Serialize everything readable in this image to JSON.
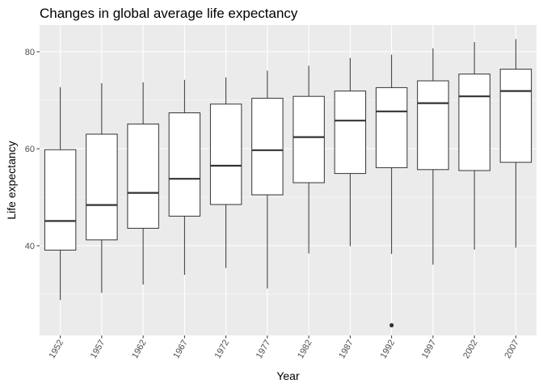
{
  "chart_data": {
    "type": "box",
    "title": "Changes in global average life expectancy",
    "xlabel": "Year",
    "ylabel": "Life expectancy",
    "ylim": [
      21.5,
      85.5
    ],
    "yticks": [
      40,
      60,
      80
    ],
    "grid": true,
    "legend": "none",
    "categories": [
      "1952",
      "1957",
      "1962",
      "1967",
      "1972",
      "1977",
      "1982",
      "1987",
      "1992",
      "1997",
      "2002",
      "2007"
    ],
    "boxes": [
      {
        "year": "1952",
        "min": 28.8,
        "q1": 39.1,
        "median": 45.1,
        "q3": 59.8,
        "max": 72.7,
        "outliers": []
      },
      {
        "year": "1957",
        "min": 30.3,
        "q1": 41.2,
        "median": 48.4,
        "q3": 63.0,
        "max": 73.5,
        "outliers": []
      },
      {
        "year": "1962",
        "min": 32.0,
        "q1": 43.6,
        "median": 50.9,
        "q3": 65.1,
        "max": 73.7,
        "outliers": []
      },
      {
        "year": "1967",
        "min": 34.0,
        "q1": 46.1,
        "median": 53.8,
        "q3": 67.4,
        "max": 74.2,
        "outliers": []
      },
      {
        "year": "1972",
        "min": 35.4,
        "q1": 48.5,
        "median": 56.5,
        "q3": 69.2,
        "max": 74.7,
        "outliers": []
      },
      {
        "year": "1977",
        "min": 31.2,
        "q1": 50.5,
        "median": 59.7,
        "q3": 70.4,
        "max": 76.1,
        "outliers": []
      },
      {
        "year": "1982",
        "min": 38.4,
        "q1": 53.0,
        "median": 62.4,
        "q3": 70.8,
        "max": 77.1,
        "outliers": []
      },
      {
        "year": "1987",
        "min": 39.9,
        "q1": 54.9,
        "median": 65.8,
        "q3": 71.9,
        "max": 78.7,
        "outliers": []
      },
      {
        "year": "1992",
        "min": 38.3,
        "q1": 56.1,
        "median": 67.7,
        "q3": 72.6,
        "max": 79.4,
        "outliers": [
          23.6
        ]
      },
      {
        "year": "1997",
        "min": 36.1,
        "q1": 55.7,
        "median": 69.4,
        "q3": 74.0,
        "max": 80.7,
        "outliers": []
      },
      {
        "year": "2002",
        "min": 39.2,
        "q1": 55.5,
        "median": 70.8,
        "q3": 75.4,
        "max": 82.0,
        "outliers": []
      },
      {
        "year": "2007",
        "min": 39.6,
        "q1": 57.2,
        "median": 71.9,
        "q3": 76.4,
        "max": 82.6,
        "outliers": []
      }
    ],
    "colors": {
      "panel_background": "#ebebeb",
      "grid_major": "#ffffff",
      "box_fill": "#ffffff",
      "box_stroke": "#333333",
      "outlier": "#333333",
      "tick_text": "#4d4d4d",
      "tick_mark": "#333333"
    }
  }
}
